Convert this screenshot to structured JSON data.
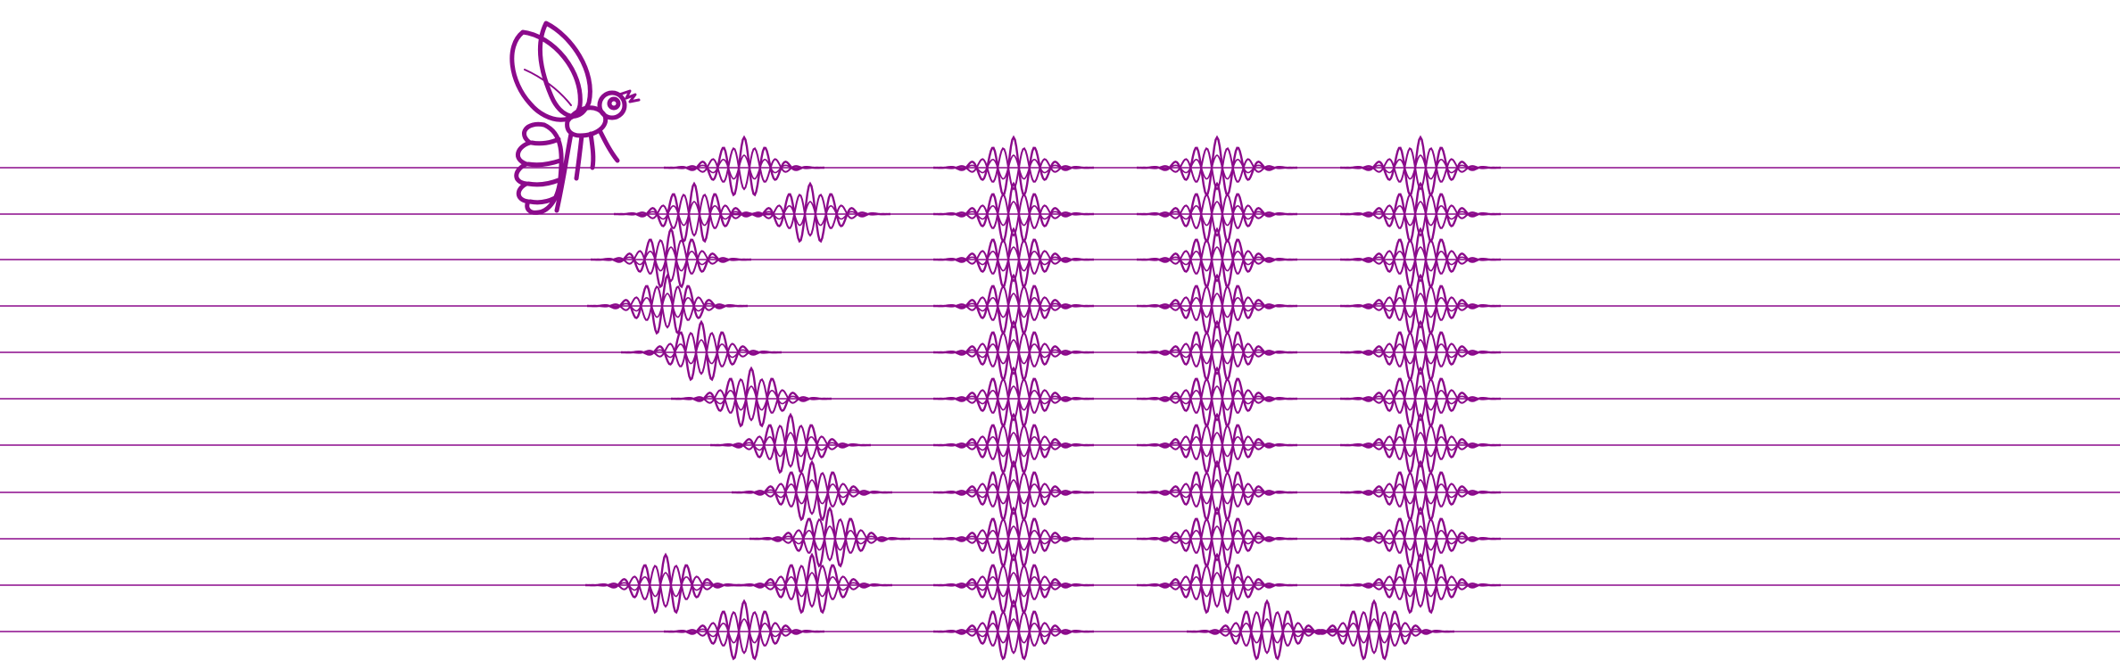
{
  "colors": {
    "background": "#ffffff",
    "line": "#8b0a8b",
    "wave": "#8b0a8b",
    "insect": "#8b0a8b"
  },
  "icons": {
    "insect": "bee-icon"
  },
  "chart_data": {
    "type": "other",
    "title": "",
    "rows": 11,
    "lanes": 4
  }
}
